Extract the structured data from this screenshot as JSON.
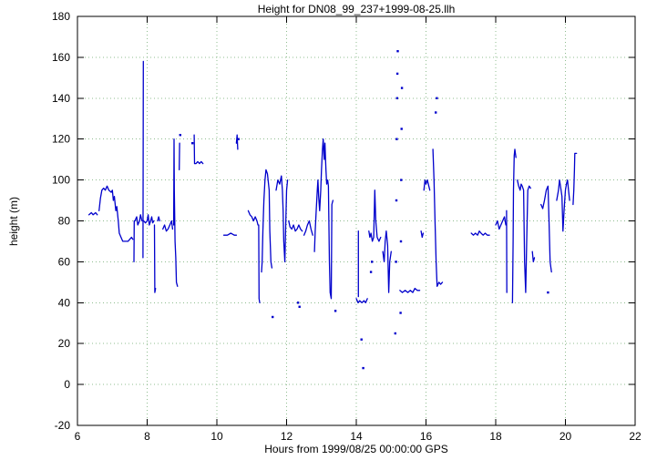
{
  "chart_data": {
    "type": "scatter",
    "title": "Height for DN08_99_237+1999-08-25.llh",
    "xlabel": "Hours from 1999/08/25 00:00:00 GPS",
    "ylabel": "height (m)",
    "xlim": [
      6,
      22
    ],
    "ylim": [
      -20,
      180
    ],
    "xticks": [
      6,
      8,
      10,
      12,
      14,
      16,
      18,
      20,
      22
    ],
    "yticks": [
      -20,
      0,
      20,
      40,
      60,
      80,
      100,
      120,
      140,
      160,
      180
    ],
    "grid": true,
    "legend": "none",
    "line_color": "#0000cc",
    "grid_color": "#8fbc8f",
    "border_color": "#000000",
    "segments": [
      [
        [
          6.33,
          83
        ],
        [
          6.4,
          84
        ],
        [
          6.45,
          83
        ],
        [
          6.52,
          84
        ],
        [
          6.57,
          83
        ]
      ],
      [
        [
          6.62,
          85
        ],
        [
          6.66,
          91
        ],
        [
          6.7,
          95
        ],
        [
          6.75,
          96
        ],
        [
          6.8,
          95
        ],
        [
          6.85,
          97
        ],
        [
          6.9,
          95
        ],
        [
          6.97,
          94
        ],
        [
          7.0,
          95
        ],
        [
          7.03,
          90
        ],
        [
          7.06,
          92
        ],
        [
          7.1,
          85
        ],
        [
          7.13,
          87
        ],
        [
          7.17,
          80
        ],
        [
          7.2,
          74
        ],
        [
          7.25,
          72
        ],
        [
          7.3,
          70
        ],
        [
          7.38,
          70
        ],
        [
          7.45,
          70
        ],
        [
          7.5,
          71
        ],
        [
          7.55,
          72
        ],
        [
          7.59,
          71
        ]
      ],
      [
        [
          7.62,
          60
        ],
        [
          7.63,
          80
        ]
      ],
      [
        [
          7.65,
          80
        ],
        [
          7.7,
          82
        ],
        [
          7.73,
          78
        ],
        [
          7.78,
          80
        ],
        [
          7.81,
          83
        ],
        [
          7.85,
          80
        ]
      ],
      [
        [
          7.88,
          62
        ],
        [
          7.89,
          158
        ]
      ],
      [
        [
          7.9,
          80
        ],
        [
          7.95,
          79
        ],
        [
          8.0,
          80
        ],
        [
          8.03,
          83
        ],
        [
          8.06,
          78
        ],
        [
          8.1,
          80
        ],
        [
          8.13,
          82
        ],
        [
          8.16,
          79
        ],
        [
          8.19,
          80
        ]
      ],
      [
        [
          8.21,
          78
        ],
        [
          8.22,
          45
        ],
        [
          8.24,
          47
        ]
      ],
      [
        [
          8.3,
          80
        ],
        [
          8.33,
          82
        ],
        [
          8.36,
          80
        ]
      ],
      [
        [
          8.45,
          76
        ],
        [
          8.5,
          78
        ],
        [
          8.55,
          75
        ],
        [
          8.6,
          76
        ],
        [
          8.65,
          78
        ],
        [
          8.7,
          80
        ],
        [
          8.73,
          76
        ]
      ],
      [
        [
          8.76,
          78
        ],
        [
          8.77,
          120
        ],
        [
          8.78,
          95
        ],
        [
          8.8,
          70
        ],
        [
          8.82,
          62
        ],
        [
          8.84,
          50
        ],
        [
          8.87,
          48
        ]
      ],
      [
        [
          8.92,
          105
        ],
        [
          8.93,
          118
        ]
      ],
      [
        [
          9.35,
          122
        ],
        [
          9.36,
          108
        ],
        [
          9.4,
          108
        ],
        [
          9.45,
          109
        ],
        [
          9.5,
          108
        ],
        [
          9.55,
          109
        ],
        [
          9.6,
          108
        ]
      ],
      [
        [
          10.2,
          73
        ],
        [
          10.3,
          73
        ],
        [
          10.4,
          74
        ],
        [
          10.5,
          73
        ],
        [
          10.56,
          73
        ]
      ],
      [
        [
          10.56,
          118
        ],
        [
          10.58,
          122
        ],
        [
          10.6,
          115
        ]
      ],
      [
        [
          10.9,
          85
        ],
        [
          10.95,
          83
        ],
        [
          11.0,
          82
        ],
        [
          11.05,
          80
        ],
        [
          11.1,
          82
        ],
        [
          11.15,
          80
        ],
        [
          11.18,
          78
        ]
      ],
      [
        [
          11.2,
          78
        ],
        [
          11.21,
          42
        ],
        [
          11.23,
          40
        ]
      ],
      [
        [
          11.28,
          55
        ],
        [
          11.3,
          60
        ],
        [
          11.32,
          75
        ],
        [
          11.35,
          90
        ],
        [
          11.38,
          100
        ],
        [
          11.41,
          105
        ],
        [
          11.45,
          103
        ],
        [
          11.5,
          95
        ],
        [
          11.52,
          75
        ],
        [
          11.55,
          60
        ],
        [
          11.58,
          57
        ]
      ],
      [
        [
          11.7,
          95
        ],
        [
          11.75,
          100
        ],
        [
          11.8,
          98
        ],
        [
          11.85,
          102
        ],
        [
          11.88,
          95
        ],
        [
          11.9,
          85
        ],
        [
          11.92,
          70
        ],
        [
          11.95,
          60
        ],
        [
          11.97,
          75
        ],
        [
          12.0,
          95
        ],
        [
          12.03,
          100
        ]
      ],
      [
        [
          12.06,
          80
        ],
        [
          12.1,
          77
        ],
        [
          12.15,
          76
        ],
        [
          12.2,
          78
        ],
        [
          12.25,
          75
        ],
        [
          12.3,
          76
        ],
        [
          12.35,
          78
        ],
        [
          12.4,
          76
        ],
        [
          12.45,
          75
        ]
      ],
      [
        [
          12.5,
          73
        ],
        [
          12.55,
          75
        ],
        [
          12.6,
          78
        ],
        [
          12.65,
          80
        ],
        [
          12.7,
          76
        ],
        [
          12.75,
          73
        ]
      ],
      [
        [
          12.8,
          65
        ],
        [
          12.82,
          75
        ],
        [
          12.85,
          85
        ],
        [
          12.88,
          95
        ],
        [
          12.9,
          100
        ],
        [
          12.92,
          92
        ],
        [
          12.95,
          85
        ],
        [
          12.98,
          95
        ],
        [
          13.0,
          105
        ],
        [
          13.03,
          115
        ],
        [
          13.05,
          120
        ],
        [
          13.08,
          110
        ],
        [
          13.1,
          118
        ],
        [
          13.13,
          105
        ],
        [
          13.15,
          98
        ],
        [
          13.18,
          100
        ],
        [
          13.2,
          97
        ],
        [
          13.23,
          60
        ],
        [
          13.25,
          45
        ],
        [
          13.28,
          42
        ],
        [
          13.3,
          88
        ],
        [
          13.33,
          90
        ]
      ],
      [
        [
          14.0,
          42
        ],
        [
          14.05,
          40
        ],
        [
          14.1,
          41
        ],
        [
          14.16,
          40
        ],
        [
          14.22,
          41
        ],
        [
          14.27,
          40
        ],
        [
          14.32,
          42
        ]
      ],
      [
        [
          14.06,
          43
        ],
        [
          14.06,
          75
        ]
      ],
      [
        [
          14.36,
          75
        ],
        [
          14.39,
          72
        ],
        [
          14.42,
          74
        ],
        [
          14.46,
          70
        ],
        [
          14.5,
          72
        ],
        [
          14.53,
          95
        ],
        [
          14.56,
          80
        ],
        [
          14.6,
          72
        ],
        [
          14.65,
          70
        ],
        [
          14.7,
          72
        ]
      ],
      [
        [
          14.76,
          65
        ],
        [
          14.8,
          60
        ],
        [
          14.83,
          70
        ],
        [
          14.86,
          75
        ],
        [
          14.9,
          68
        ],
        [
          14.93,
          45
        ],
        [
          14.96,
          60
        ],
        [
          15.0,
          65
        ]
      ],
      [
        [
          15.25,
          46
        ],
        [
          15.32,
          45
        ],
        [
          15.4,
          46
        ],
        [
          15.48,
          45
        ],
        [
          15.55,
          46
        ],
        [
          15.62,
          45
        ],
        [
          15.68,
          47
        ],
        [
          15.75,
          46
        ],
        [
          15.82,
          46
        ]
      ],
      [
        [
          15.86,
          75
        ],
        [
          15.89,
          72
        ],
        [
          15.92,
          74
        ]
      ],
      [
        [
          15.94,
          95
        ],
        [
          15.97,
          100
        ],
        [
          16.0,
          98
        ],
        [
          16.04,
          100
        ],
        [
          16.08,
          97
        ],
        [
          16.11,
          95
        ]
      ],
      [
        [
          16.2,
          115
        ],
        [
          16.23,
          100
        ],
        [
          16.26,
          80
        ],
        [
          16.29,
          60
        ],
        [
          16.32,
          48
        ],
        [
          16.37,
          50
        ],
        [
          16.42,
          49
        ],
        [
          16.47,
          50
        ]
      ],
      [
        [
          17.3,
          74
        ],
        [
          17.36,
          73
        ],
        [
          17.42,
          74
        ],
        [
          17.48,
          73
        ],
        [
          17.53,
          75
        ],
        [
          17.58,
          74
        ],
        [
          17.64,
          73
        ],
        [
          17.7,
          74
        ],
        [
          17.76,
          73
        ],
        [
          17.82,
          73
        ]
      ],
      [
        [
          18.0,
          78
        ],
        [
          18.05,
          80
        ],
        [
          18.1,
          76
        ],
        [
          18.15,
          78
        ],
        [
          18.2,
          80
        ],
        [
          18.25,
          82
        ],
        [
          18.29,
          78
        ]
      ],
      [
        [
          18.31,
          85
        ],
        [
          18.32,
          45
        ]
      ],
      [
        [
          18.48,
          40
        ],
        [
          18.5,
          70
        ],
        [
          18.51,
          95
        ],
        [
          18.53,
          112
        ],
        [
          18.55,
          115
        ],
        [
          18.58,
          111
        ]
      ],
      [
        [
          18.62,
          100
        ],
        [
          18.66,
          97
        ],
        [
          18.7,
          95
        ],
        [
          18.73,
          98
        ],
        [
          18.76,
          97
        ],
        [
          18.8,
          95
        ],
        [
          18.83,
          60
        ],
        [
          18.86,
          45
        ],
        [
          18.89,
          70
        ],
        [
          18.92,
          95
        ],
        [
          18.96,
          97
        ],
        [
          19.0,
          96
        ]
      ],
      [
        [
          19.05,
          65
        ],
        [
          19.08,
          60
        ],
        [
          19.11,
          62
        ]
      ],
      [
        [
          19.3,
          88
        ],
        [
          19.35,
          86
        ],
        [
          19.4,
          90
        ],
        [
          19.45,
          95
        ],
        [
          19.5,
          97
        ],
        [
          19.53,
          80
        ],
        [
          19.56,
          60
        ],
        [
          19.6,
          55
        ]
      ],
      [
        [
          19.75,
          90
        ],
        [
          19.8,
          95
        ],
        [
          19.83,
          100
        ],
        [
          19.86,
          97
        ],
        [
          19.9,
          92
        ],
        [
          19.93,
          75
        ],
        [
          19.96,
          85
        ],
        [
          20.0,
          95
        ],
        [
          20.03,
          98
        ],
        [
          20.06,
          100
        ],
        [
          20.09,
          95
        ],
        [
          20.12,
          90
        ]
      ],
      [
        [
          20.22,
          88
        ],
        [
          20.24,
          95
        ],
        [
          20.26,
          105
        ],
        [
          20.27,
          113
        ],
        [
          20.32,
          113
        ]
      ]
    ],
    "points": [
      [
        8.95,
        122
      ],
      [
        9.3,
        118
      ],
      [
        10.62,
        120
      ],
      [
        11.6,
        33
      ],
      [
        12.33,
        40
      ],
      [
        12.37,
        38
      ],
      [
        13.4,
        36
      ],
      [
        14.15,
        22
      ],
      [
        14.2,
        8
      ],
      [
        14.42,
        55
      ],
      [
        14.45,
        60
      ],
      [
        15.12,
        25
      ],
      [
        15.14,
        60
      ],
      [
        15.15,
        90
      ],
      [
        15.16,
        120
      ],
      [
        15.17,
        140
      ],
      [
        15.18,
        152
      ],
      [
        15.19,
        163
      ],
      [
        15.27,
        35
      ],
      [
        15.28,
        70
      ],
      [
        15.29,
        100
      ],
      [
        15.3,
        125
      ],
      [
        15.31,
        145
      ],
      [
        16.28,
        133
      ],
      [
        16.31,
        140
      ],
      [
        19.5,
        45
      ]
    ]
  }
}
